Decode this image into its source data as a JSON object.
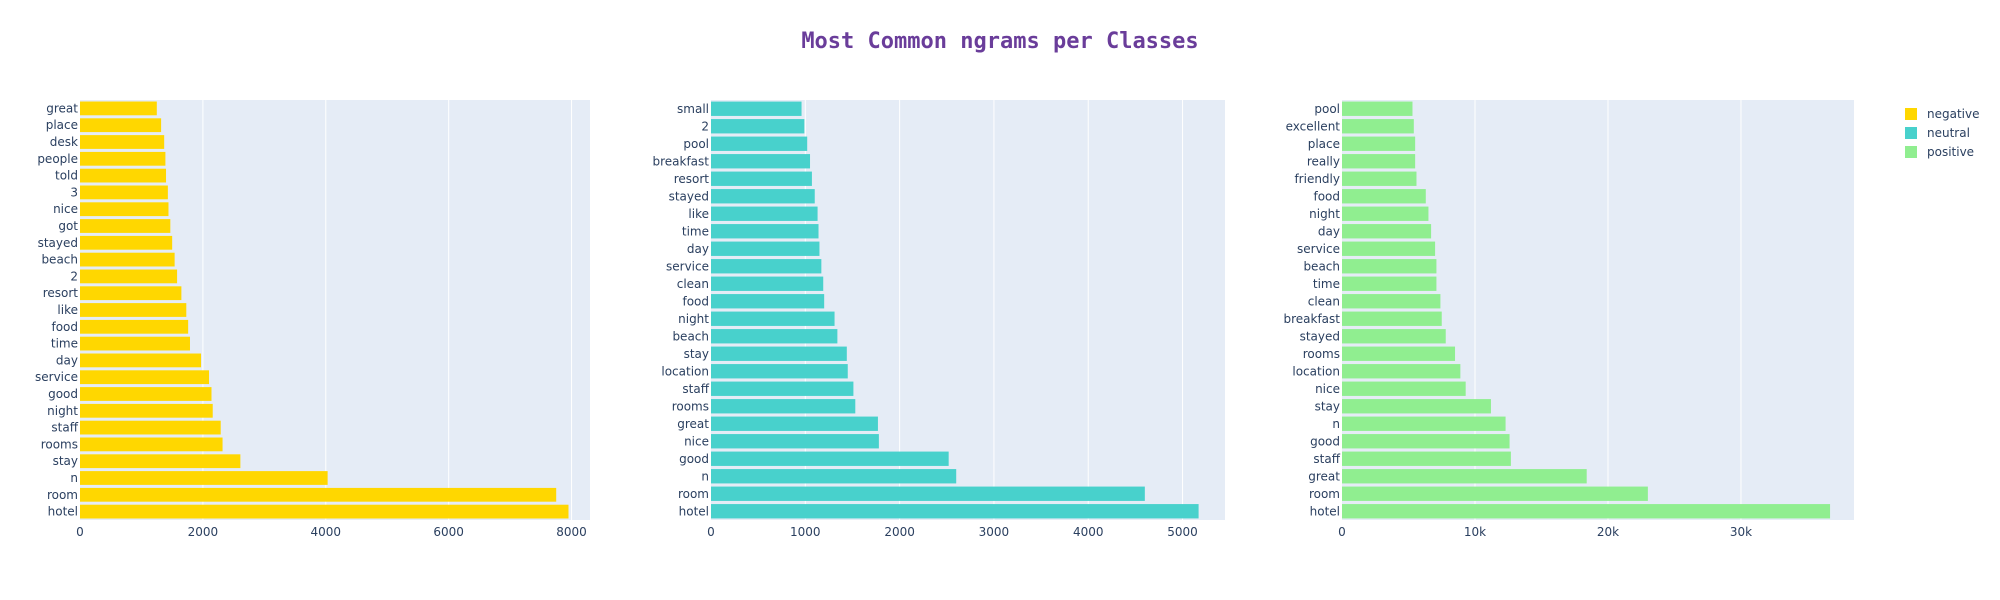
{
  "title": "Most Common ngrams per Classes",
  "chart_data": [
    {
      "type": "bar",
      "orientation": "horizontal",
      "series_name": "negative",
      "color": "#FFD700",
      "xlim": [
        0,
        8300
      ],
      "xticks": [
        0,
        2000,
        4000,
        6000,
        8000
      ],
      "xtick_labels": [
        "0",
        "2000",
        "4000",
        "6000",
        "8000"
      ],
      "categories": [
        "great",
        "place",
        "desk",
        "people",
        "told",
        "3",
        "nice",
        "got",
        "stayed",
        "beach",
        "2",
        "resort",
        "like",
        "food",
        "time",
        "day",
        "service",
        "good",
        "night",
        "staff",
        "rooms",
        "stay",
        "n",
        "room",
        "hotel"
      ],
      "values": [
        1250,
        1320,
        1370,
        1390,
        1400,
        1430,
        1440,
        1470,
        1500,
        1540,
        1580,
        1650,
        1730,
        1760,
        1790,
        1970,
        2100,
        2140,
        2160,
        2290,
        2320,
        2610,
        4030,
        7750,
        7950
      ]
    },
    {
      "type": "bar",
      "orientation": "horizontal",
      "series_name": "neutral",
      "color": "#48D1CC",
      "xlim": [
        0,
        5450
      ],
      "xticks": [
        0,
        1000,
        2000,
        3000,
        4000,
        5000
      ],
      "xtick_labels": [
        "0",
        "1000",
        "2000",
        "3000",
        "4000",
        "5000"
      ],
      "categories": [
        "small",
        "2",
        "pool",
        "breakfast",
        "resort",
        "stayed",
        "like",
        "time",
        "day",
        "service",
        "clean",
        "food",
        "night",
        "beach",
        "stay",
        "location",
        "staff",
        "rooms",
        "great",
        "nice",
        "good",
        "n",
        "room",
        "hotel"
      ],
      "values": [
        960,
        990,
        1020,
        1050,
        1070,
        1100,
        1130,
        1140,
        1150,
        1170,
        1190,
        1200,
        1310,
        1340,
        1440,
        1450,
        1510,
        1530,
        1770,
        1780,
        2520,
        2600,
        4600,
        5170
      ]
    },
    {
      "type": "bar",
      "orientation": "horizontal",
      "series_name": "positive",
      "color": "#90EE90",
      "xlim": [
        0,
        38500
      ],
      "xticks": [
        0,
        10000,
        20000,
        30000
      ],
      "xtick_labels": [
        "0",
        "10k",
        "20k",
        "30k"
      ],
      "categories": [
        "pool",
        "excellent",
        "place",
        "really",
        "friendly",
        "food",
        "night",
        "day",
        "service",
        "beach",
        "time",
        "clean",
        "breakfast",
        "stayed",
        "rooms",
        "location",
        "nice",
        "stay",
        "n",
        "good",
        "staff",
        "great",
        "room",
        "hotel"
      ],
      "values": [
        5300,
        5400,
        5500,
        5500,
        5600,
        6300,
        6500,
        6700,
        7000,
        7100,
        7100,
        7400,
        7500,
        7800,
        8500,
        8900,
        9300,
        11200,
        12300,
        12600,
        12700,
        18400,
        23000,
        36700
      ]
    }
  ],
  "legend": [
    {
      "label": "negative",
      "color": "#FFD700"
    },
    {
      "label": "neutral",
      "color": "#48D1CC"
    },
    {
      "label": "positive",
      "color": "#90EE90"
    }
  ]
}
